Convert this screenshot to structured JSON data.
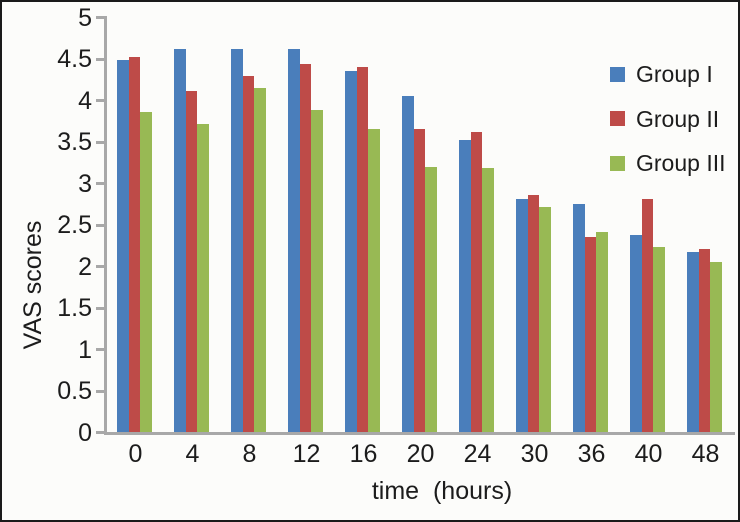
{
  "figure": {
    "background": "#fcfcfa",
    "border_color": "#1a1a1a",
    "axis_color": "#a8a8a8",
    "text_color": "#1c1c1c"
  },
  "chart_data": {
    "type": "bar",
    "title": "",
    "xlabel": "time  (hours)",
    "ylabel": "VAS scores",
    "categories": [
      "0",
      "4",
      "8",
      "12",
      "16",
      "20",
      "24",
      "30",
      "36",
      "40",
      "48"
    ],
    "series": [
      {
        "name": "Group I",
        "color": "#4a7ebb",
        "values": [
          4.49,
          4.62,
          4.62,
          4.62,
          4.36,
          4.06,
          3.52,
          2.81,
          2.75,
          2.38,
          2.18
        ]
      },
      {
        "name": "Group II",
        "color": "#be4b48",
        "values": [
          4.53,
          4.12,
          4.3,
          4.44,
          4.4,
          3.66,
          3.62,
          2.86,
          2.35,
          2.81,
          2.21
        ]
      },
      {
        "name": "Group III",
        "color": "#98b954",
        "values": [
          3.86,
          3.72,
          4.15,
          3.88,
          3.66,
          3.2,
          3.19,
          2.72,
          2.41,
          2.23,
          2.05
        ]
      }
    ],
    "ylim": [
      0,
      5
    ],
    "ytick_step": 0.5,
    "ytick_labels": [
      "0",
      "0.5",
      "1",
      "1.5",
      "2",
      "2.5",
      "3",
      "3.5",
      "4",
      "4.5",
      "5"
    ],
    "grid": false,
    "legend_position": "top-right"
  }
}
